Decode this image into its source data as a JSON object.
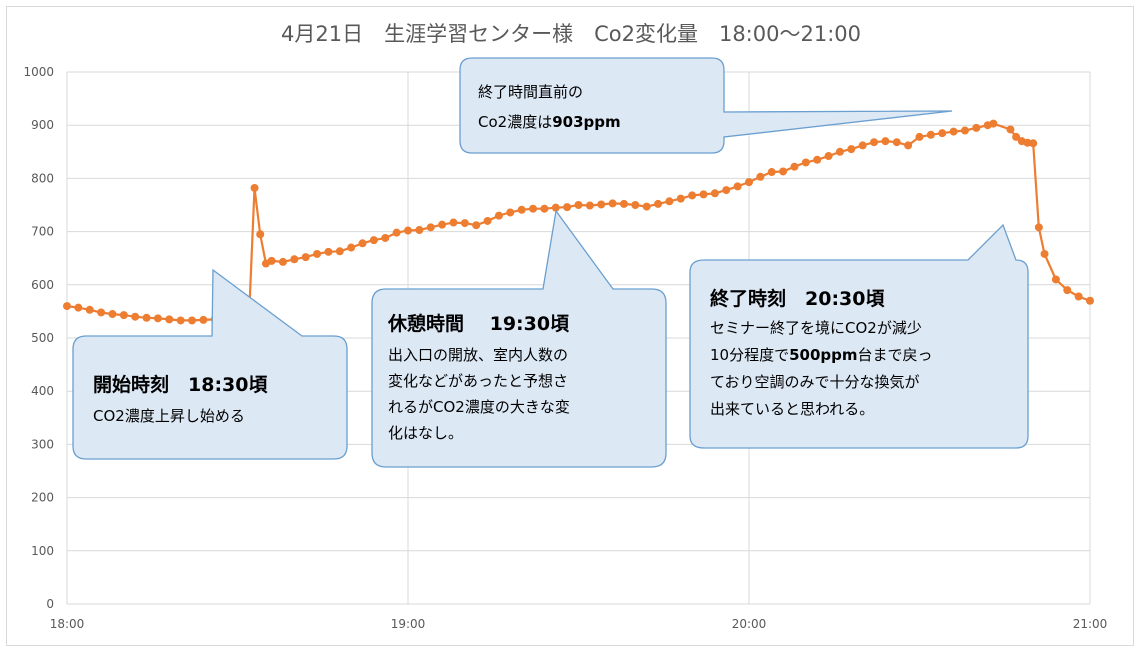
{
  "chart_data": {
    "type": "line",
    "title": "4月21日　生涯学習センター様　Co2変化量　18:00～21:00",
    "xlabel": "",
    "ylabel": "",
    "ylim": [
      0,
      1000
    ],
    "yticks": [
      "0",
      "100",
      "200",
      "300",
      "400",
      "500",
      "600",
      "700",
      "800",
      "900",
      "1000"
    ],
    "xlim": [
      0,
      180
    ],
    "xticks": [
      "18:00",
      "19:00",
      "20:00",
      "21:00"
    ],
    "grid": true,
    "legend": "none",
    "line_color": "#ed7d31",
    "series": [
      {
        "x": [
          0,
          2,
          4,
          6,
          8,
          10,
          12,
          14,
          16,
          18,
          20,
          22,
          24,
          26,
          28,
          30,
          32,
          33,
          34,
          35,
          36,
          38,
          40,
          42,
          44,
          46,
          48,
          50,
          52,
          54,
          56,
          58,
          60,
          62,
          64,
          66,
          68,
          70,
          72,
          74,
          76,
          78,
          80,
          82,
          84,
          86,
          88,
          90,
          92,
          94,
          96,
          98,
          100,
          102,
          104,
          106,
          108,
          110,
          112,
          114,
          116,
          118,
          120,
          122,
          124,
          126,
          128,
          130,
          132,
          134,
          136,
          138,
          140,
          142,
          144,
          146,
          148,
          150,
          152,
          154,
          156,
          158,
          160,
          162,
          163,
          166,
          167,
          168,
          169,
          170,
          171,
          172,
          174,
          176,
          178,
          180
        ],
        "values": [
          560,
          557,
          553,
          548,
          545,
          543,
          540,
          538,
          537,
          535,
          533,
          533,
          534,
          535,
          533,
          533,
          533,
          782,
          695,
          640,
          645,
          643,
          648,
          652,
          658,
          662,
          663,
          670,
          678,
          684,
          688,
          698,
          702,
          703,
          708,
          713,
          717,
          716,
          712,
          720,
          730,
          736,
          741,
          743,
          743,
          745,
          746,
          750,
          749,
          751,
          753,
          752,
          750,
          747,
          752,
          757,
          762,
          768,
          770,
          772,
          778,
          785,
          793,
          803,
          812,
          813,
          822,
          830,
          835,
          842,
          850,
          855,
          862,
          868,
          870,
          868,
          862,
          878,
          882,
          885,
          888,
          890,
          895,
          900,
          903,
          892,
          878,
          870,
          867,
          866,
          708,
          658,
          610,
          590,
          578,
          570
        ]
      }
    ],
    "annotations": [
      {
        "head": "終了時間直前の",
        "lines": [
          "Co2濃度は",
          "903ppm"
        ]
      },
      {
        "head": "開始時刻　18:30頃",
        "lines": [
          "CO2濃度上昇し始める"
        ]
      },
      {
        "head": "休憩時間　 19:30頃",
        "lines": [
          "出入口の開放、室内人数の",
          "変化などがあったと予想さ",
          "れるがCO2濃度の大きな変",
          "化はなし。"
        ]
      },
      {
        "head": "終了時刻　20:30頃",
        "lines": [
          "セミナー終了を境にCO2が減少",
          "10分程度で",
          "500ppm",
          "台まで戻っ",
          "ており空調のみで十分な換気が",
          "出来ていると思われる。"
        ]
      }
    ]
  }
}
